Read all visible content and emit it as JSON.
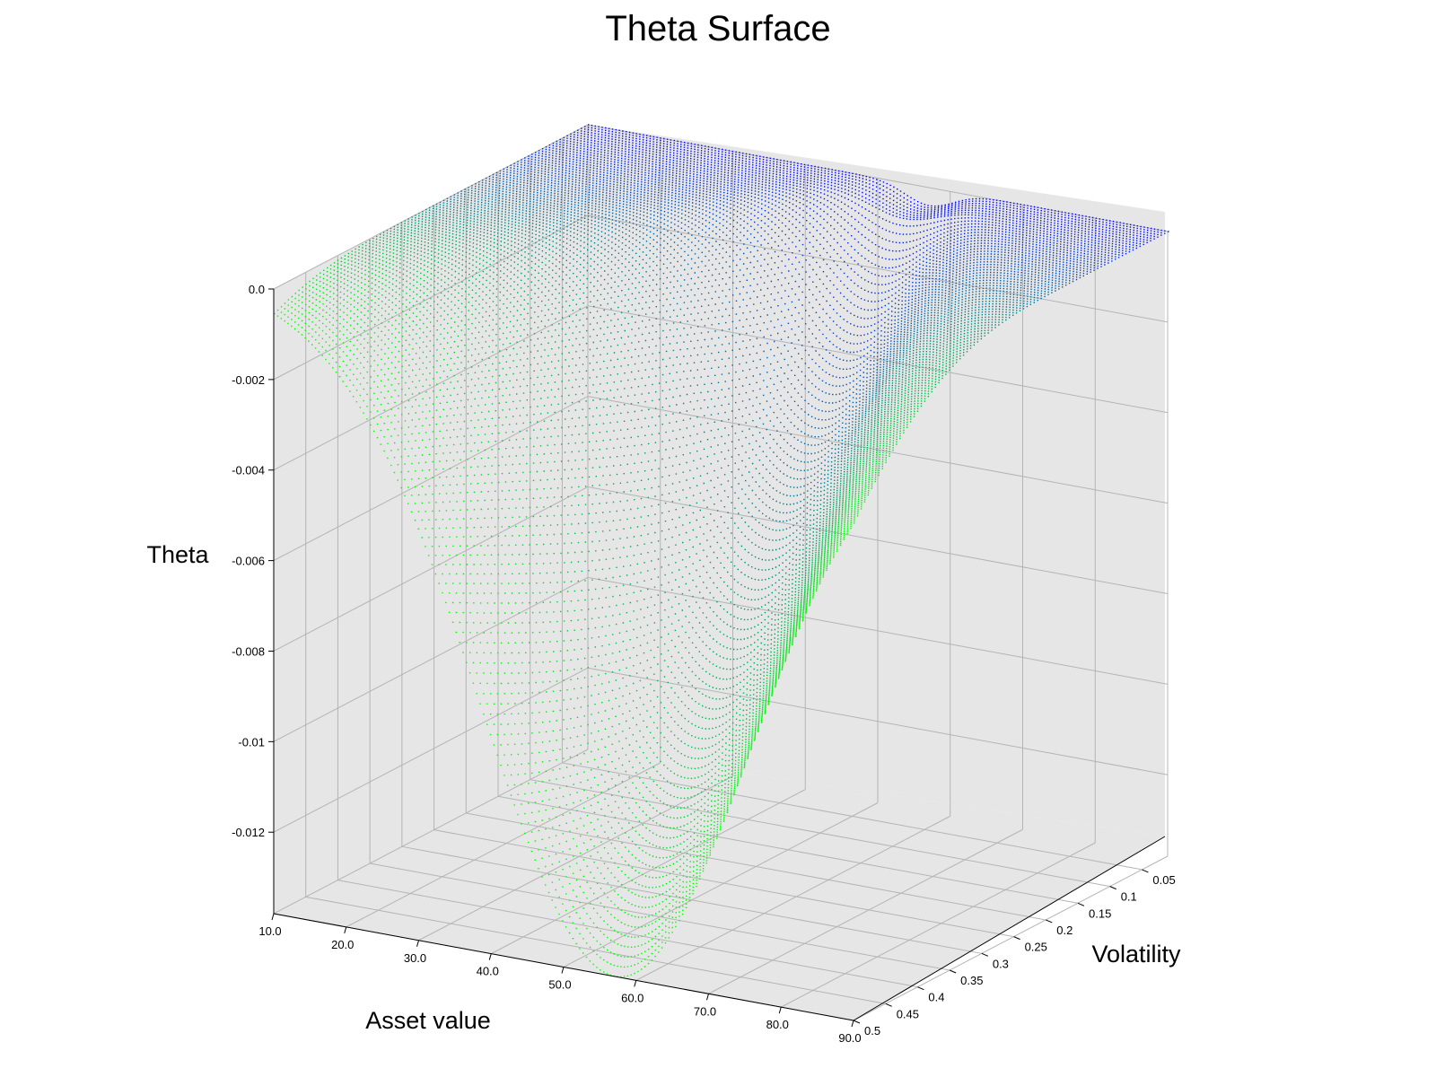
{
  "chart_data": {
    "type": "scatter",
    "subtype": "3d-surface",
    "title": "Theta Surface",
    "xlabel": "Asset value",
    "ylabel": "Volatility",
    "zlabel": "Theta",
    "x_ticks": [
      "10.0",
      "20.0",
      "30.0",
      "40.0",
      "50.0",
      "60.0",
      "70.0",
      "80.0",
      "90.0"
    ],
    "y_ticks": [
      "0.05",
      "0.1",
      "0.15",
      "0.2",
      "0.25",
      "0.3",
      "0.35",
      "0.4",
      "0.45",
      "0.5"
    ],
    "z_ticks": [
      "0.0",
      "-0.002",
      "-0.004",
      "-0.006",
      "-0.008",
      "-0.01",
      "-0.012"
    ],
    "xlim": [
      10,
      90
    ],
    "ylim": [
      0.01,
      0.5
    ],
    "zlim": [
      -0.0138,
      0
    ],
    "grid": true,
    "colors": {
      "low_volatility": "#0000ff",
      "high_volatility": "#00ff00",
      "pane_fill": "#e6e6e6",
      "grid_line": "#b4b4b4"
    },
    "surface_samples": [
      {
        "volatility": 0.5,
        "asset_value": 10,
        "theta": 0.0
      },
      {
        "volatility": 0.5,
        "asset_value": 30,
        "theta": -0.0068
      },
      {
        "volatility": 0.5,
        "asset_value": 50,
        "theta": -0.0132
      },
      {
        "volatility": 0.5,
        "asset_value": 58,
        "theta": -0.0138
      },
      {
        "volatility": 0.5,
        "asset_value": 70,
        "theta": -0.0127
      },
      {
        "volatility": 0.5,
        "asset_value": 90,
        "theta": -0.0103
      },
      {
        "volatility": 0.25,
        "asset_value": 40,
        "theta": -0.0049
      },
      {
        "volatility": 0.25,
        "asset_value": 50,
        "theta": -0.0057
      },
      {
        "volatility": 0.25,
        "asset_value": 60,
        "theta": -0.0035
      },
      {
        "volatility": 0.05,
        "asset_value": 50,
        "theta": -0.0003
      },
      {
        "volatility": 0.05,
        "asset_value": 60,
        "theta": 0.0
      },
      {
        "volatility": 0.01,
        "asset_value": 10,
        "theta": 0.0
      },
      {
        "volatility": 0.01,
        "asset_value": 90,
        "theta": 0.0
      }
    ]
  }
}
